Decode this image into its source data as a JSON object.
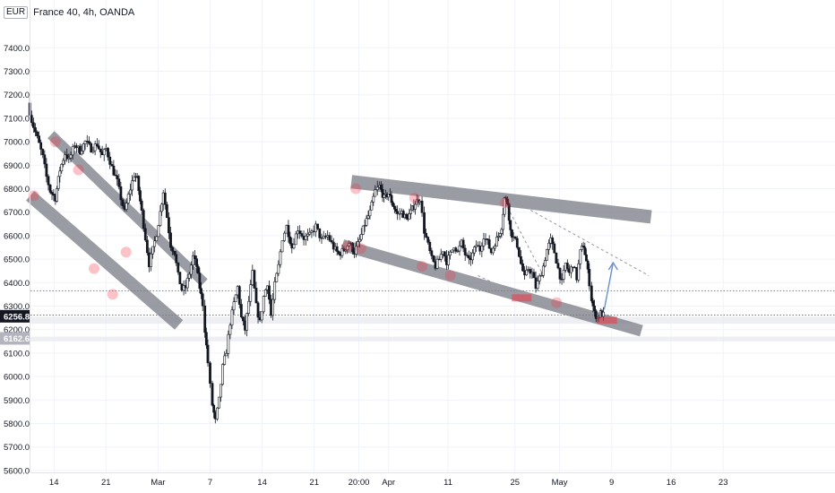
{
  "header": {
    "currency": "EUR",
    "symbol_title": "France 40, 4h, OANDA"
  },
  "chart_data": {
    "type": "candlestick",
    "title": "France 40, 4h, OANDA",
    "currency": "EUR",
    "y_range": [
      5550,
      7550
    ],
    "y_ticks": [
      7400,
      7300,
      7200,
      7100,
      7000,
      6900,
      6800,
      6700,
      6600,
      6500,
      6400,
      6300,
      6200,
      6100,
      6000,
      5900,
      5800,
      5700,
      5600
    ],
    "y_tick_labels": [
      "7400.0",
      "7300.0",
      "7200.0",
      "7100.0",
      "7000.0",
      "6900.0",
      "6800.0",
      "6700.0",
      "6600.0",
      "6500.0",
      "6400.0",
      "6300.0",
      "6200.0",
      "6100.0",
      "6000.0",
      "5900.0",
      "5800.0",
      "5700.0",
      "5600.0"
    ],
    "x_range": [
      5,
      96
    ],
    "x_ticks": [
      {
        "day": 14,
        "label": "14"
      },
      {
        "day": 21,
        "label": "21"
      },
      {
        "day": 28,
        "label": "Mar"
      },
      {
        "day": 35,
        "label": "7"
      },
      {
        "day": 42,
        "label": "14"
      },
      {
        "day": 49,
        "label": "21"
      },
      {
        "day": 55,
        "label": "20:00"
      },
      {
        "day": 59,
        "label": "Apr"
      },
      {
        "day": 67,
        "label": "11"
      },
      {
        "day": 76,
        "label": "25"
      },
      {
        "day": 82,
        "label": "May"
      },
      {
        "day": 89,
        "label": "9"
      },
      {
        "day": 97,
        "label": "16"
      },
      {
        "day": 104,
        "label": "23"
      }
    ],
    "current_price": {
      "value": 6256.8,
      "label": "6256.8",
      "color": "#131722"
    },
    "price_marker_2": {
      "value": 6162.6,
      "label": "6162.6"
    },
    "dotted_levels": [
      6365,
      6262
    ],
    "shaded_zones": [
      [
        6225,
        6255
      ],
      [
        6150,
        6170
      ]
    ],
    "colors": {
      "up": "#ffffff",
      "down": "#131722",
      "wick": "#131722",
      "channel": "#787b86",
      "touch": "#f23645",
      "arrow": "#6a8fc7",
      "dash": "#9598a1"
    },
    "path": [
      [
        10.5,
        7165
      ],
      [
        11,
        7090
      ],
      [
        11.5,
        7040
      ],
      [
        12,
        6990
      ],
      [
        12.5,
        6935
      ],
      [
        13,
        6850
      ],
      [
        13.5,
        6790
      ],
      [
        14.2,
        6760
      ],
      [
        14.8,
        6880
      ],
      [
        15.5,
        6950
      ],
      [
        16,
        6920
      ],
      [
        16.8,
        6990
      ],
      [
        17.5,
        6960
      ],
      [
        18.2,
        7000
      ],
      [
        19,
        6970
      ],
      [
        19.8,
        6990
      ],
      [
        20.5,
        6940
      ],
      [
        21,
        6970
      ],
      [
        21.8,
        6890
      ],
      [
        22.5,
        6830
      ],
      [
        23,
        6760
      ],
      [
        23.5,
        6700
      ],
      [
        24,
        6770
      ],
      [
        24.8,
        6860
      ],
      [
        25.2,
        6840
      ],
      [
        25.8,
        6700
      ],
      [
        26.3,
        6590
      ],
      [
        26.8,
        6480
      ],
      [
        27.3,
        6540
      ],
      [
        27.8,
        6610
      ],
      [
        28.3,
        6700
      ],
      [
        28.7,
        6790
      ],
      [
        29.2,
        6680
      ],
      [
        29.7,
        6560
      ],
      [
        30.2,
        6530
      ],
      [
        30.7,
        6430
      ],
      [
        31.2,
        6370
      ],
      [
        31.7,
        6380
      ],
      [
        32.2,
        6440
      ],
      [
        32.7,
        6510
      ],
      [
        33.2,
        6470
      ],
      [
        33.6,
        6380
      ],
      [
        34,
        6310
      ],
      [
        34.3,
        6200
      ],
      [
        34.7,
        6060
      ],
      [
        35,
        5960
      ],
      [
        35.3,
        5880
      ],
      [
        35.7,
        5810
      ],
      [
        36.2,
        5900
      ],
      [
        36.7,
        6040
      ],
      [
        37.2,
        6110
      ],
      [
        37.7,
        6230
      ],
      [
        38.2,
        6310
      ],
      [
        38.7,
        6380
      ],
      [
        39.2,
        6250
      ],
      [
        39.7,
        6200
      ],
      [
        40.2,
        6320
      ],
      [
        40.7,
        6440
      ],
      [
        41.2,
        6300
      ],
      [
        41.7,
        6230
      ],
      [
        42.2,
        6340
      ],
      [
        42.7,
        6400
      ],
      [
        43.2,
        6260
      ],
      [
        43.7,
        6390
      ],
      [
        44.2,
        6470
      ],
      [
        44.7,
        6590
      ],
      [
        45.3,
        6640
      ],
      [
        46,
        6550
      ],
      [
        46.8,
        6630
      ],
      [
        47.6,
        6590
      ],
      [
        48.4,
        6600
      ],
      [
        49.2,
        6640
      ],
      [
        50,
        6580
      ],
      [
        50.8,
        6600
      ],
      [
        51.6,
        6550
      ],
      [
        52.3,
        6520
      ],
      [
        53,
        6540
      ],
      [
        53.7,
        6570
      ],
      [
        54.4,
        6530
      ],
      [
        55.1,
        6580
      ],
      [
        55.8,
        6650
      ],
      [
        56.5,
        6700
      ],
      [
        57.2,
        6790
      ],
      [
        57.8,
        6810
      ],
      [
        58.4,
        6760
      ],
      [
        59,
        6780
      ],
      [
        59.6,
        6730
      ],
      [
        60.2,
        6690
      ],
      [
        60.8,
        6700
      ],
      [
        61.4,
        6670
      ],
      [
        62,
        6700
      ],
      [
        62.6,
        6740
      ],
      [
        63.2,
        6760
      ],
      [
        63.8,
        6620
      ],
      [
        64.3,
        6560
      ],
      [
        64.8,
        6500
      ],
      [
        65.3,
        6470
      ],
      [
        65.8,
        6500
      ],
      [
        66.3,
        6540
      ],
      [
        66.8,
        6490
      ],
      [
        67.3,
        6520
      ],
      [
        67.8,
        6560
      ],
      [
        68.3,
        6530
      ],
      [
        68.8,
        6570
      ],
      [
        69.3,
        6520
      ],
      [
        69.8,
        6490
      ],
      [
        70.3,
        6520
      ],
      [
        70.8,
        6560
      ],
      [
        71.3,
        6540
      ],
      [
        71.8,
        6600
      ],
      [
        72.3,
        6570
      ],
      [
        72.8,
        6530
      ],
      [
        73.3,
        6570
      ],
      [
        73.8,
        6600
      ],
      [
        74.2,
        6640
      ],
      [
        74.6,
        6760
      ],
      [
        75,
        6740
      ],
      [
        75.4,
        6620
      ],
      [
        75.8,
        6590
      ],
      [
        76.3,
        6560
      ],
      [
        76.8,
        6480
      ],
      [
        77.3,
        6420
      ],
      [
        77.8,
        6460
      ],
      [
        78.3,
        6440
      ],
      [
        78.8,
        6380
      ],
      [
        79.3,
        6420
      ],
      [
        79.8,
        6470
      ],
      [
        80.3,
        6540
      ],
      [
        80.8,
        6580
      ],
      [
        81.3,
        6530
      ],
      [
        81.8,
        6460
      ],
      [
        82.3,
        6400
      ],
      [
        82.8,
        6480
      ],
      [
        83.3,
        6440
      ],
      [
        83.8,
        6480
      ],
      [
        84.3,
        6420
      ],
      [
        84.8,
        6530
      ],
      [
        85.2,
        6560
      ],
      [
        85.6,
        6490
      ],
      [
        86,
        6400
      ],
      [
        86.3,
        6330
      ],
      [
        86.7,
        6270
      ],
      [
        87.1,
        6250
      ],
      [
        87.5,
        6270
      ],
      [
        87.9,
        6262
      ]
    ],
    "channels": [
      {
        "name": "",
        "from": [
          10.8,
          6770
        ],
        "to": [
          30.8,
          6220
        ],
        "width": 14
      },
      {
        "name": "",
        "from": [
          13.6,
          7030
        ],
        "to": [
          34.2,
          6400
        ],
        "width": 11
      },
      {
        "name": "",
        "from": [
          54,
          6830
        ],
        "to": [
          94.3,
          6680
        ],
        "width": 15
      },
      {
        "name": "",
        "from": [
          52.8,
          6560
        ],
        "to": [
          93,
          6195
        ],
        "width": 13
      }
    ],
    "dashed_lines": [
      {
        "from": [
          74.3,
          6775
        ],
        "to": [
          94,
          6430
        ]
      },
      {
        "from": [
          71,
          6430
        ],
        "to": [
          80,
          6300
        ]
      },
      {
        "from": [
          75,
          6720
        ],
        "to": [
          80,
          6420
        ]
      }
    ],
    "arrow": {
      "from": [
        88,
        6285
      ],
      "to": [
        89.2,
        6485
      ]
    },
    "touch_markers": [
      {
        "at": [
          11.3,
          6770
        ],
        "kind": "circle"
      },
      {
        "at": [
          14.2,
          7000
        ],
        "kind": "circle"
      },
      {
        "at": [
          17.3,
          6880
        ],
        "kind": "circle"
      },
      {
        "at": [
          19.4,
          6460
        ],
        "kind": "circle"
      },
      {
        "at": [
          23.7,
          6530
        ],
        "kind": "circle"
      },
      {
        "at": [
          21.9,
          6350
        ],
        "kind": "circle"
      },
      {
        "at": [
          54.6,
          6800
        ],
        "kind": "circle"
      },
      {
        "at": [
          62.5,
          6760
        ],
        "kind": "circle"
      },
      {
        "at": [
          74.7,
          6740
        ],
        "kind": "circle"
      },
      {
        "at": [
          53.5,
          6555
        ],
        "kind": "circle"
      },
      {
        "at": [
          55.3,
          6545
        ],
        "kind": "circle"
      },
      {
        "at": [
          63.5,
          6470
        ],
        "kind": "circle"
      },
      {
        "at": [
          67.3,
          6430
        ],
        "kind": "circle"
      },
      {
        "at": [
          76.9,
          6335
        ],
        "kind": "rect"
      },
      {
        "at": [
          81.6,
          6315
        ],
        "kind": "circle"
      },
      {
        "at": [
          88.4,
          6240
        ],
        "kind": "rect"
      }
    ]
  }
}
